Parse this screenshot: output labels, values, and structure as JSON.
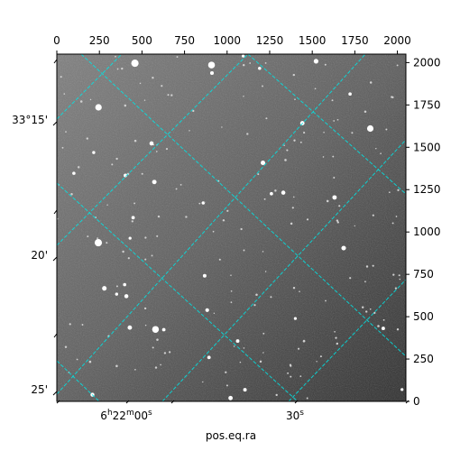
{
  "colors": {
    "grid": "#00e5e5",
    "frame": "#000000",
    "background": "#ffffff"
  },
  "axes": {
    "top_ticks": [
      "0",
      "250",
      "500",
      "750",
      "1000",
      "1250",
      "1500",
      "1750",
      "2000"
    ],
    "right_ticks": [
      "0",
      "250",
      "500",
      "750",
      "1000",
      "1250",
      "1500",
      "1750",
      "2000"
    ],
    "left_ticks": [
      "33°15'",
      "20'",
      "25'"
    ],
    "bottom_ticks": [
      {
        "main": "6",
        "sup1": "h",
        "mid": "22",
        "sup2": "m",
        "tail": "00",
        "sup3": "s"
      },
      {
        "main": "30",
        "sup1": "s",
        "mid": "",
        "sup2": "",
        "tail": "",
        "sup3": ""
      }
    ],
    "xlabel": "pos.eq.ra"
  }
}
